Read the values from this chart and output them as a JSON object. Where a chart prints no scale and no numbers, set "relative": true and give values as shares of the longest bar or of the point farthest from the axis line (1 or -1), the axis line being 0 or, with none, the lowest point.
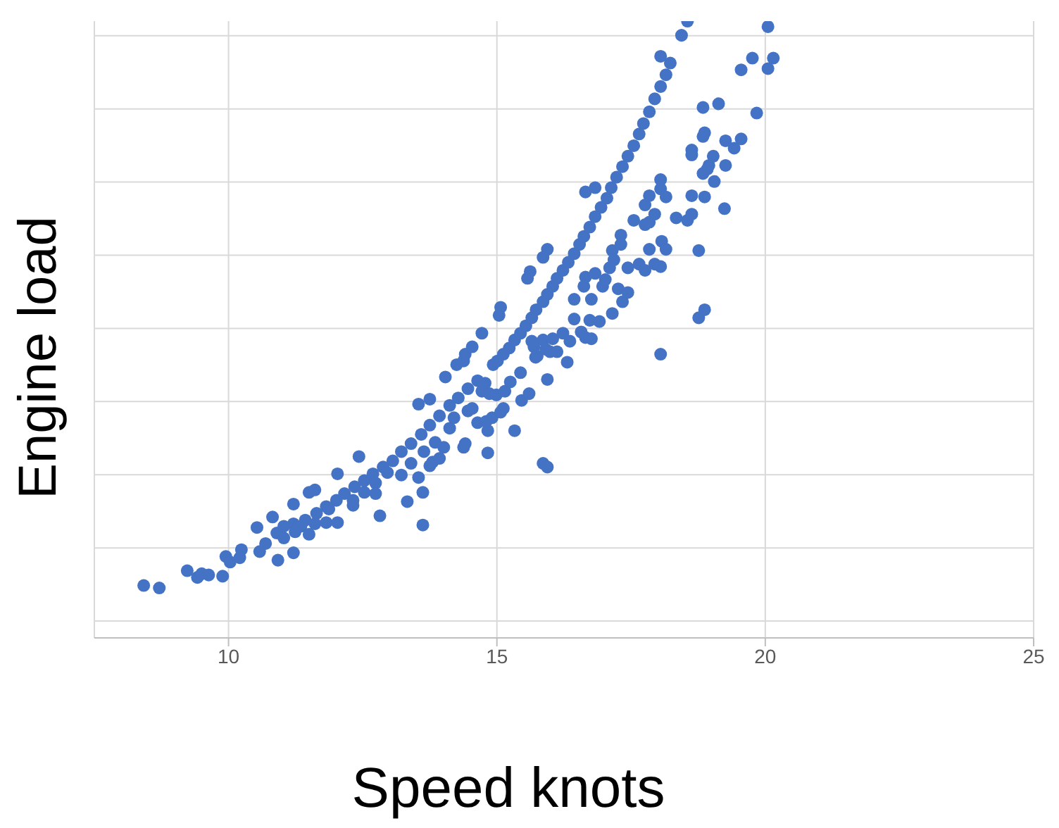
{
  "chart_data": {
    "type": "scatter",
    "xlabel": "Speed knots",
    "ylabel": "Engine load",
    "relative": true,
    "grid": true,
    "marker": "circle",
    "xlim": [
      7.5,
      25
    ],
    "xticks": [
      10,
      15,
      20,
      25
    ],
    "series": [
      {
        "color": "#4472c4",
        "x": [
          11.64,
          11.82,
          12.01,
          12.16,
          12.35,
          12.53,
          12.69,
          12.88,
          13.06,
          13.22,
          13.4,
          13.59,
          13.75,
          13.93,
          14.12,
          14.28,
          14.46,
          14.64,
          14.93,
          15.01,
          15.12,
          15.23,
          15.33,
          15.44,
          15.54,
          15.65,
          15.73,
          15.86,
          15.94,
          16.04,
          16.12,
          16.23,
          16.33,
          16.44,
          16.54,
          16.62,
          16.73,
          16.83,
          16.94,
          17.05,
          17.13,
          17.23,
          17.34,
          17.44,
          17.55,
          17.65,
          17.73,
          17.84,
          17.94,
          18.05,
          18.15,
          18.23,
          18.05,
          18.44,
          18.55,
          11.43,
          11.21,
          11.03,
          10.9,
          8.42,
          8.71,
          9.23,
          9.42,
          9.5,
          9.63,
          9.89,
          9.95,
          10.03,
          10.21,
          10.24,
          10.53,
          10.58,
          10.69,
          10.82,
          10.92,
          11.03,
          11.21,
          11.21,
          11.24,
          11.35,
          11.5,
          11.5,
          11.61,
          11.61,
          11.82,
          11.87,
          12.03,
          12.03,
          12.32,
          12.32,
          12.43,
          12.53,
          12.74,
          12.74,
          12.82,
          12.96,
          13.22,
          13.33,
          13.4,
          13.54,
          13.54,
          13.62,
          13.62,
          13.64,
          13.75,
          13.75,
          13.8,
          13.85,
          13.93,
          14.01,
          14.04,
          14.12,
          14.2,
          14.25,
          14.38,
          14.38,
          14.41,
          14.41,
          14.46,
          14.54,
          14.54,
          14.64,
          14.72,
          14.72,
          14.78,
          14.8,
          14.83,
          14.83,
          14.86,
          14.91,
          14.99,
          15.04,
          15.07,
          15.07,
          15.12,
          15.15,
          15.25,
          15.33,
          15.44,
          15.46,
          15.57,
          15.6,
          15.62,
          15.65,
          15.69,
          15.72,
          15.75,
          15.86,
          15.86,
          15.86,
          15.91,
          15.94,
          15.94,
          15.94,
          15.99,
          16.04,
          16.12,
          16.23,
          16.31,
          16.36,
          16.44,
          16.44,
          16.57,
          16.62,
          16.65,
          16.65,
          16.65,
          16.73,
          16.76,
          16.76,
          16.83,
          16.83,
          16.91,
          16.97,
          17.02,
          17.1,
          17.15,
          17.15,
          17.18,
          17.26,
          17.31,
          17.31,
          17.34,
          17.44,
          17.44,
          17.55,
          17.65,
          17.76,
          17.76,
          17.76,
          17.84,
          17.84,
          17.84,
          17.94,
          17.94,
          18.05,
          18.05,
          18.05,
          18.05,
          18.07,
          18.15,
          18.15,
          18.34,
          18.55,
          18.63,
          18.63,
          18.63,
          18.63,
          18.76,
          18.76,
          18.84,
          18.84,
          18.84,
          18.87,
          18.87,
          18.87,
          18.92,
          18.95,
          19.03,
          19.05,
          19.13,
          19.24,
          19.26,
          19.26,
          19.42,
          19.55,
          19.55,
          19.76,
          19.84,
          20.05,
          20.05,
          20.15
        ],
        "values": [
          0.202,
          0.213,
          0.223,
          0.234,
          0.245,
          0.255,
          0.266,
          0.277,
          0.287,
          0.302,
          0.315,
          0.33,
          0.345,
          0.36,
          0.377,
          0.389,
          0.404,
          0.417,
          0.443,
          0.449,
          0.46,
          0.47,
          0.483,
          0.494,
          0.506,
          0.519,
          0.532,
          0.545,
          0.557,
          0.57,
          0.583,
          0.596,
          0.609,
          0.623,
          0.638,
          0.651,
          0.666,
          0.683,
          0.698,
          0.713,
          0.73,
          0.747,
          0.764,
          0.781,
          0.798,
          0.817,
          0.834,
          0.853,
          0.874,
          0.894,
          0.913,
          0.932,
          0.943,
          0.977,
          1,
          0.191,
          0.185,
          0.181,
          0.17,
          0.085,
          0.081,
          0.109,
          0.098,
          0.104,
          0.102,
          0.1,
          0.132,
          0.123,
          0.13,
          0.143,
          0.179,
          0.14,
          0.153,
          0.196,
          0.126,
          0.162,
          0.217,
          0.138,
          0.172,
          0.181,
          0.236,
          0.168,
          0.24,
          0.185,
          0.187,
          0.209,
          0.266,
          0.187,
          0.223,
          0.215,
          0.294,
          0.236,
          0.251,
          0.234,
          0.198,
          0.268,
          0.264,
          0.221,
          0.283,
          0.379,
          0.26,
          0.236,
          0.183,
          0.302,
          0.387,
          0.279,
          0.285,
          0.317,
          0.291,
          0.309,
          0.423,
          0.34,
          0.357,
          0.443,
          0.449,
          0.309,
          0.46,
          0.315,
          0.368,
          0.472,
          0.372,
          0.349,
          0.494,
          0.4,
          0.413,
          0.351,
          0.336,
          0.3,
          0.396,
          0.357,
          0.394,
          0.523,
          0.536,
          0.366,
          0.372,
          0.4,
          0.415,
          0.336,
          0.43,
          0.385,
          0.583,
          0.396,
          0.594,
          0.481,
          0.472,
          0.455,
          0.457,
          0.483,
          0.283,
          0.617,
          0.468,
          0.63,
          0.419,
          0.277,
          0.464,
          0.485,
          0.464,
          0.494,
          0.447,
          0.481,
          0.549,
          0.517,
          0.496,
          0.57,
          0.723,
          0.585,
          0.487,
          0.515,
          0.549,
          0.485,
          0.73,
          0.591,
          0.513,
          0.57,
          0.581,
          0.6,
          0.628,
          0.526,
          0.613,
          0.566,
          0.653,
          0.638,
          0.545,
          0.6,
          0.56,
          0.677,
          0.606,
          0.702,
          0.67,
          0.596,
          0.717,
          0.674,
          0.63,
          0.687,
          0.606,
          0.743,
          0.728,
          0.602,
          0.46,
          0.643,
          0.715,
          0.63,
          0.681,
          0.677,
          0.791,
          0.783,
          0.717,
          0.687,
          0.628,
          0.519,
          0.86,
          0.813,
          0.753,
          0.819,
          0.715,
          0.532,
          0.76,
          0.766,
          0.781,
          0.74,
          0.866,
          0.696,
          0.806,
          0.766,
          0.794,
          0.809,
          0.921,
          0.94,
          0.851,
          0.923,
          0.991,
          0.94
        ]
      }
    ]
  }
}
